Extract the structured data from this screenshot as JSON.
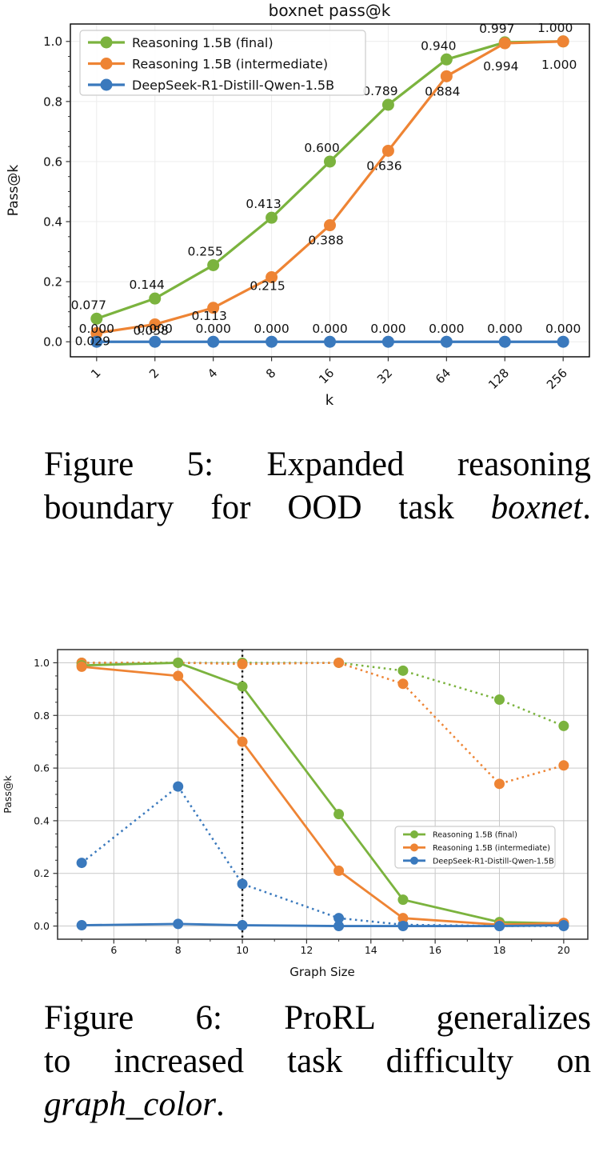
{
  "captions": {
    "fig5": {
      "lines": [
        {
          "justify_last": true,
          "segments": [
            {
              "text": "Figure 5:  Expanded reasoning",
              "italic": false
            }
          ]
        },
        {
          "justify_last": true,
          "segments": [
            {
              "text": "boundary for OOD task ",
              "italic": false
            },
            {
              "text": "boxnet",
              "italic": true
            },
            {
              "text": ".",
              "italic": false
            }
          ]
        }
      ]
    },
    "fig6": {
      "lines": [
        {
          "justify_last": true,
          "segments": [
            {
              "text": "Figure 6:  ProRL generalizes",
              "italic": false
            }
          ]
        },
        {
          "justify_last": true,
          "segments": [
            {
              "text": "to increased task difficulty on",
              "italic": false
            }
          ]
        },
        {
          "justify_last": false,
          "segments": [
            {
              "text": "graph_color",
              "italic": true
            },
            {
              "text": ".",
              "italic": false
            }
          ]
        }
      ]
    }
  },
  "colors": {
    "green": "#7bb33e",
    "orange": "#ee8434",
    "blue": "#3a79bd",
    "vline": "#111111"
  },
  "chart_data": [
    {
      "id": "fig5",
      "type": "line",
      "title": "boxnet pass@k",
      "xlabel": "k",
      "ylabel": "Pass@k",
      "x_scale": "log2-categorical",
      "categories": [
        "1",
        "2",
        "4",
        "8",
        "16",
        "32",
        "64",
        "128",
        "256"
      ],
      "yticks": [
        "0.0",
        "0.2",
        "0.4",
        "0.6",
        "0.8",
        "1.0"
      ],
      "ylim": [
        -0.05,
        1.058
      ],
      "grid": true,
      "legend_position": "upper-left",
      "series": [
        {
          "name": "Reasoning 1.5B (final)",
          "color": "#7bb33e",
          "line": "solid",
          "in_legend": true,
          "values": [
            0.077,
            0.144,
            0.255,
            0.413,
            0.6,
            0.789,
            0.94,
            0.997,
            1.0
          ],
          "labels": [
            "0.077",
            "0.144",
            "0.255",
            "0.413",
            "0.600",
            "0.789",
            "0.940",
            "0.997",
            "1.000"
          ]
        },
        {
          "name": "Reasoning 1.5B (intermediate)",
          "color": "#ee8434",
          "line": "solid",
          "in_legend": true,
          "values": [
            0.029,
            0.058,
            0.113,
            0.215,
            0.388,
            0.636,
            0.884,
            0.994,
            1.0
          ],
          "labels": [
            "0.029",
            "0.058",
            "0.113",
            "0.215",
            "0.388",
            "0.636",
            "0.884",
            "0.994",
            "1.000"
          ]
        },
        {
          "name": "DeepSeek-R1-Distill-Qwen-1.5B",
          "color": "#3a79bd",
          "line": "solid",
          "in_legend": true,
          "values": [
            0.0,
            0.0,
            0.0,
            0.0,
            0.0,
            0.0,
            0.0,
            0.0,
            0.0
          ],
          "labels": [
            "0.000",
            "0.000",
            "0.000",
            "0.000",
            "0.000",
            "0.000",
            "0.000",
            "0.000",
            "0.000"
          ]
        }
      ]
    },
    {
      "id": "fig6",
      "type": "line",
      "title": "",
      "xlabel": "Graph Size",
      "ylabel": "Pass@k",
      "x": [
        5,
        8,
        10,
        13,
        15,
        18,
        20
      ],
      "xticks": [
        "6",
        "8",
        "10",
        "12",
        "14",
        "16",
        "18",
        "20"
      ],
      "yticks": [
        "0.0",
        "0.2",
        "0.4",
        "0.6",
        "0.8",
        "1.0"
      ],
      "xlim": [
        4.25,
        20.75
      ],
      "ylim": [
        -0.05,
        1.05
      ],
      "grid": true,
      "vline_x": 10,
      "legend_position": "center-right",
      "series": [
        {
          "name": "Reasoning 1.5B (final)",
          "color": "#7bb33e",
          "line": "dotted",
          "in_legend": false,
          "values": [
            1.0,
            1.0,
            1.0,
            1.0,
            0.97,
            0.86,
            0.76
          ]
        },
        {
          "name": "Reasoning 1.5B (intermediate)",
          "color": "#ee8434",
          "line": "dotted",
          "in_legend": false,
          "values": [
            1.0,
            1.0,
            0.995,
            1.0,
            0.92,
            0.54,
            0.61
          ]
        },
        {
          "name": "DeepSeek-R1-Distill-Qwen-1.5B",
          "color": "#3a79bd",
          "line": "dotted",
          "in_legend": false,
          "values": [
            0.24,
            0.53,
            0.16,
            0.03,
            0.005,
            0.0,
            0.0
          ]
        },
        {
          "name": "Reasoning 1.5B (final)",
          "color": "#7bb33e",
          "line": "solid",
          "in_legend": true,
          "values": [
            0.99,
            1.0,
            0.91,
            0.425,
            0.1,
            0.015,
            0.01
          ]
        },
        {
          "name": "Reasoning 1.5B (intermediate)",
          "color": "#ee8434",
          "line": "solid",
          "in_legend": true,
          "values": [
            0.985,
            0.95,
            0.7,
            0.21,
            0.03,
            0.005,
            0.012
          ]
        },
        {
          "name": "DeepSeek-R1-Distill-Qwen-1.5B",
          "color": "#3a79bd",
          "line": "solid",
          "in_legend": true,
          "values": [
            0.003,
            0.008,
            0.003,
            0.0,
            0.0,
            0.0,
            0.003
          ]
        }
      ]
    }
  ]
}
